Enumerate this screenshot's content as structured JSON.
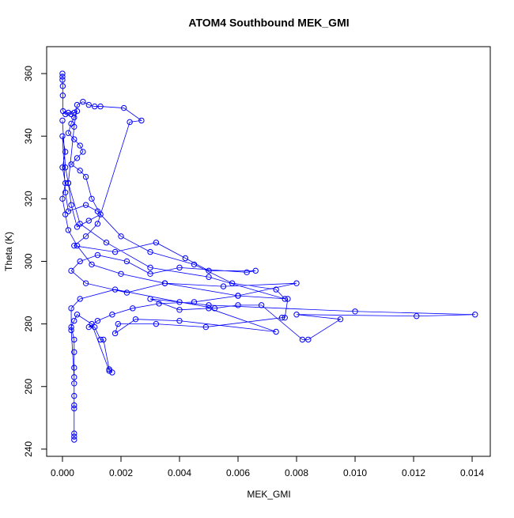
{
  "chart_data": {
    "type": "line_points",
    "title": "ATOM4 Southbound MEK_GMI",
    "x_label": "MEK_GMI",
    "y_label": "Theta (K)",
    "color": "#0000ff",
    "xlim": [
      -0.00054,
      0.01462
    ],
    "ylim": [
      237.7,
      368.6
    ],
    "xticks": [
      {
        "value": 0,
        "label": "0.000"
      },
      {
        "value": 0.002,
        "label": "0.002"
      },
      {
        "value": 0.004,
        "label": "0.004"
      },
      {
        "value": 0.006,
        "label": "0.006"
      },
      {
        "value": 0.008,
        "label": "0.008"
      },
      {
        "value": 0.01,
        "label": "0.010"
      },
      {
        "value": 0.012,
        "label": "0.012"
      },
      {
        "value": 0.014,
        "label": "0.014"
      }
    ],
    "yticks": [
      240,
      260,
      280,
      300,
      320,
      340,
      360
    ],
    "x": [
      0.0,
      0.0,
      0.0,
      1e-05,
      1e-05,
      2e-05,
      0.0001,
      0.0002,
      0.0003,
      0.0004,
      0.0005,
      0.0004,
      0.0003,
      0.0002,
      0.0004,
      0.0006,
      0.0007,
      0.0005,
      0.0003,
      0.0006,
      0.0008,
      0.001,
      0.0013,
      0.0009,
      0.0005,
      0.0003,
      0.0002,
      0.0004,
      0.0005,
      0.0007,
      0.0009,
      0.0011,
      0.0013,
      0.0021,
      0.0027,
      0.0023,
      0.0012,
      0.0008,
      0.0004,
      0.0018,
      0.0032,
      0.0042,
      0.005,
      0.0066,
      0.0063,
      0.004,
      0.003,
      0.0022,
      0.0012,
      0.0006,
      0.0003,
      0.0008,
      0.0022,
      0.0035,
      0.0055,
      0.008,
      0.006,
      0.0045,
      0.0033,
      0.0024,
      0.0017,
      0.0012,
      0.0009,
      0.0011,
      0.0013,
      0.0014,
      0.0016,
      0.0017,
      0.0016,
      0.001,
      0.0005,
      0.0004,
      0.0003,
      0.0004,
      0.0004,
      0.0004,
      0.0004,
      0.0004,
      0.0004,
      0.0004,
      0.0004,
      0.0004,
      0.0004,
      0.0004,
      0.0003,
      0.0003,
      0.0006,
      0.0018,
      0.004,
      0.0052,
      0.006,
      0.0068,
      0.0082,
      0.0084,
      0.0095,
      0.008,
      0.0121,
      0.0141,
      0.01,
      0.005,
      0.003,
      0.004,
      0.005,
      0.0073,
      0.004,
      0.0025,
      0.0018,
      0.0019,
      0.0032,
      0.0049,
      0.0075,
      0.0076,
      0.0077,
      0.006,
      0.0035,
      0.002,
      0.001,
      0.0005,
      0.0002,
      0.0001,
      0.0,
      0.0001,
      0.0,
      0.0001,
      0.0,
      0.0001,
      0.0002,
      0.0008,
      0.0012,
      0.002,
      0.003,
      0.0045,
      0.0058,
      0.0073,
      0.0076,
      0.005,
      0.003,
      0.0015,
      0.0006,
      0.0002,
      0.0001,
      0.0
    ],
    "values": [
      360,
      359,
      358,
      356,
      353,
      348,
      347,
      347.5,
      347,
      347.5,
      348,
      346,
      344,
      341,
      339,
      337,
      335,
      333,
      331,
      329,
      327,
      320,
      315,
      313,
      311,
      318,
      325,
      343,
      350,
      351,
      350,
      349.5,
      349.5,
      349,
      345,
      344.5,
      312,
      308,
      305,
      303,
      306,
      301,
      297,
      297,
      296.5,
      298,
      296,
      300,
      302,
      300,
      297,
      293,
      290,
      293,
      292,
      293,
      289,
      287,
      286.5,
      285,
      283,
      281,
      279,
      279,
      275,
      275,
      265.5,
      264.5,
      265,
      280,
      283,
      281,
      279,
      275,
      271,
      266,
      261,
      257,
      254,
      253,
      245,
      243,
      244,
      263,
      278,
      285,
      288,
      291,
      287,
      285,
      286,
      286,
      275,
      275,
      281.5,
      283,
      282.5,
      283,
      284,
      286,
      288,
      284.5,
      285,
      277.5,
      281,
      281.5,
      277,
      280,
      280,
      279,
      282,
      282,
      288,
      289,
      293,
      296,
      299,
      305,
      310,
      315,
      320,
      325,
      330,
      335,
      340,
      322,
      316,
      318,
      316,
      308,
      303,
      299,
      293,
      291,
      288,
      295,
      298,
      306,
      312,
      325,
      330,
      345
    ]
  }
}
